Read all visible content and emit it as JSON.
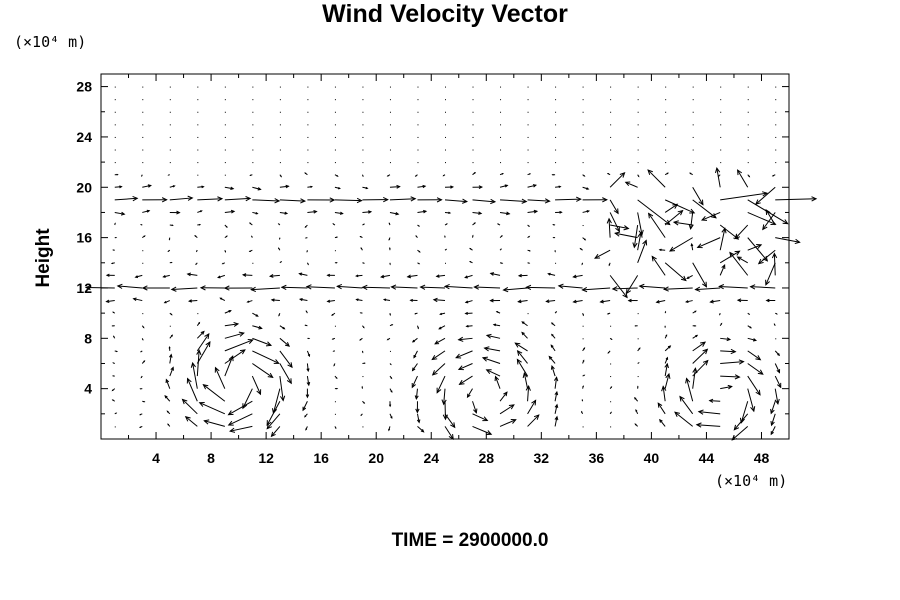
{
  "chart_data": {
    "type": "quiver",
    "title": "Wind Velocity Vector",
    "xlabel": "",
    "ylabel": "Height",
    "x_unit": "(×10⁴ m)",
    "y_unit": "(×10⁴ m)",
    "footer": "TIME = 2900000.0",
    "xlim": [
      0,
      50
    ],
    "ylim": [
      0,
      29
    ],
    "x_ticks": [
      4,
      8,
      12,
      16,
      20,
      24,
      28,
      32,
      36,
      40,
      44,
      48
    ],
    "y_ticks": [
      4,
      8,
      12,
      16,
      20,
      24,
      28
    ],
    "grid": false,
    "vector_grid": {
      "x_spacing": 2,
      "y_spacing": 1,
      "x_start": 1,
      "x_end": 49,
      "y_start": 1,
      "y_end": 28
    },
    "flow_features": [
      {
        "kind": "vortex",
        "x": 10,
        "y": 4.5,
        "rotation": "clockwise",
        "radius": 4,
        "strength": 2.6
      },
      {
        "kind": "vortex",
        "x": 28,
        "y": 3.5,
        "rotation": "counterclockwise",
        "radius": 5,
        "strength": 1.6
      },
      {
        "kind": "vortex",
        "x": 45,
        "y": 3.5,
        "rotation": "clockwise",
        "radius": 4,
        "strength": 2.0
      },
      {
        "kind": "jet",
        "y": 12,
        "direction": "west",
        "strength": 2.4
      },
      {
        "kind": "jet",
        "y": 19,
        "direction": "east",
        "strength": 2.2
      },
      {
        "kind": "turbulent",
        "x_min": 36,
        "x_max": 50,
        "y_min": 13,
        "y_max": 20,
        "strength": 2.2
      }
    ]
  }
}
